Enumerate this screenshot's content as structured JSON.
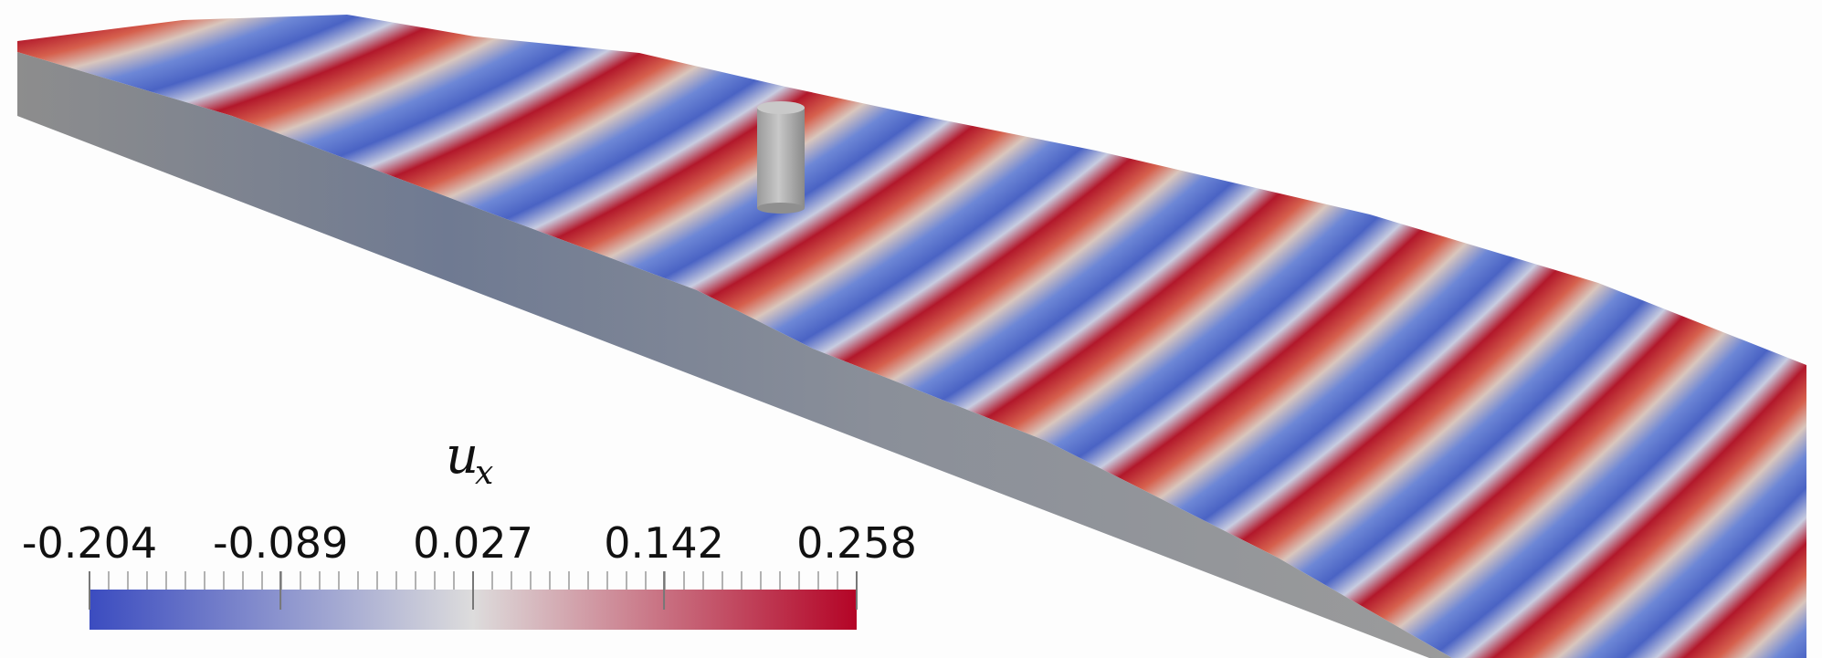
{
  "colorbar": {
    "title": "u",
    "title_subscript": "x",
    "lim": [
      -0.204,
      0.258
    ],
    "ticks": [
      -0.204,
      -0.089,
      0.027,
      0.142,
      0.258
    ],
    "colormap": [
      "#3b4cc0",
      "#dddcdc",
      "#b40426"
    ]
  }
}
